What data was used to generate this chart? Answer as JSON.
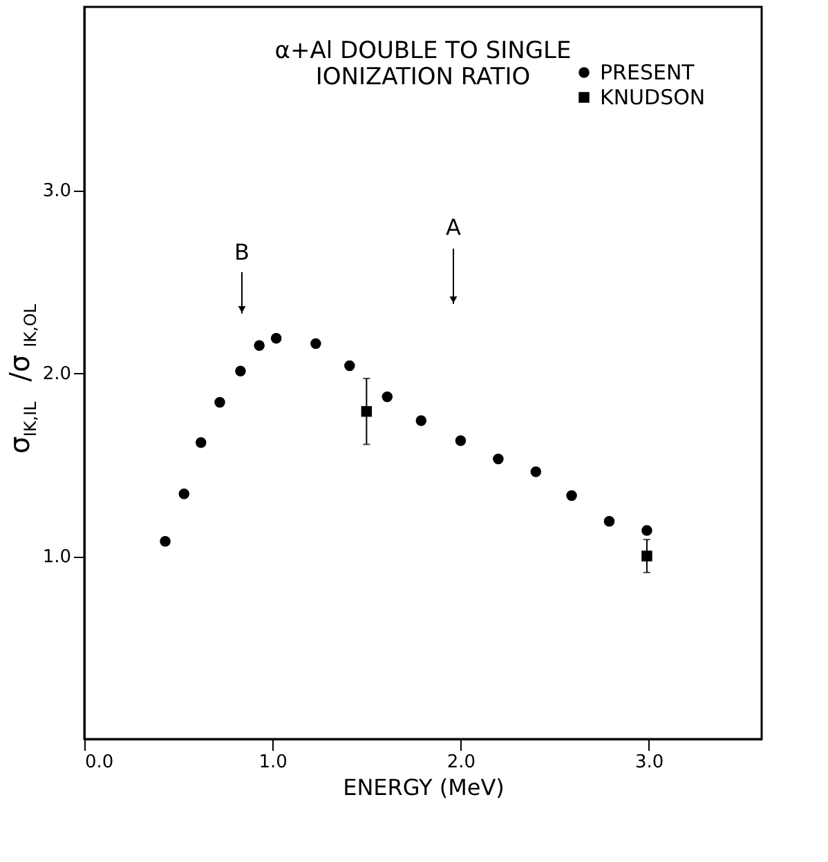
{
  "chart_data": {
    "type": "scatter",
    "title": "α+Al DOUBLE TO SINGLE\nIONIZATION RATIO",
    "xlabel": "ENERGY (MeV)",
    "ylabel": "σ$_{IK,IL}$/σ$_{IK,OL}$",
    "xlim": [
      0,
      3.6
    ],
    "ylim": [
      0,
      4.0
    ],
    "xticks": [
      {
        "value": 0,
        "label": "0.0"
      },
      {
        "value": 1,
        "label": "1.0"
      },
      {
        "value": 2,
        "label": "2.0"
      },
      {
        "value": 3,
        "label": "3.0"
      }
    ],
    "yticks": [
      {
        "value": 1,
        "label": "1.0"
      },
      {
        "value": 2,
        "label": "2.0"
      },
      {
        "value": 3,
        "label": "3.0"
      }
    ],
    "series": [
      {
        "name": "PRESENT",
        "color": "#000000",
        "marker": "circle",
        "x": [
          0.43,
          0.53,
          0.62,
          0.72,
          0.83,
          0.93,
          1.02,
          1.23,
          1.41,
          1.61,
          1.79,
          2.0,
          2.2,
          2.4,
          2.59,
          2.79,
          2.99
        ],
        "values": [
          1.08,
          1.34,
          1.62,
          1.84,
          2.01,
          2.15,
          2.19,
          2.16,
          2.04,
          1.87,
          1.74,
          1.63,
          1.53,
          1.46,
          1.33,
          1.19,
          1.14
        ]
      },
      {
        "name": "KNUDSON",
        "color": "#000000",
        "marker": "square",
        "x": [
          1.5,
          2.99
        ],
        "values": [
          1.79,
          1.0
        ],
        "errors": [
          0.18,
          0.09
        ]
      }
    ],
    "annotations": [
      "B",
      "A"
    ],
    "legend": "top right",
    "grid": false
  }
}
